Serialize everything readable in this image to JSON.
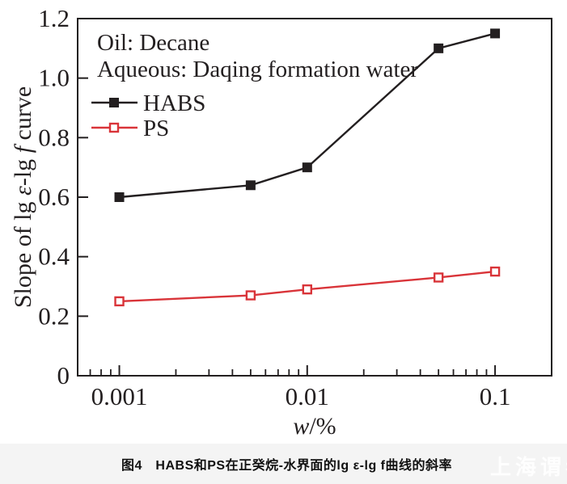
{
  "chart_data": {
    "type": "line",
    "title": "",
    "xlabel_parts": [
      {
        "t": "w",
        "i": true
      },
      {
        "t": "/%",
        "i": false
      }
    ],
    "ylabel_parts": [
      {
        "t": "Slope of lg ",
        "i": false
      },
      {
        "t": "ε",
        "i": true
      },
      {
        "t": "-lg ",
        "i": false
      },
      {
        "t": "f",
        "i": true
      },
      {
        "t": " curve",
        "i": false
      }
    ],
    "x_axis": {
      "scale": "log",
      "min": 0.0006,
      "max": 0.2,
      "major_ticks": [
        0.001,
        0.01,
        0.1
      ],
      "tick_labels": [
        "0.001",
        "0.01",
        "0.1"
      ]
    },
    "y_axis": {
      "scale": "linear",
      "min": 0,
      "max": 1.2,
      "major_ticks": [
        0,
        0.2,
        0.4,
        0.6,
        0.8,
        1.0,
        1.2
      ],
      "tick_labels": [
        "0",
        "0.2",
        "0.4",
        "0.6",
        "0.8",
        "1.0",
        "1.2"
      ]
    },
    "x": [
      0.001,
      0.005,
      0.01,
      0.05,
      0.1
    ],
    "series": [
      {
        "name": "HABS",
        "color": "#231f20",
        "marker": "filled-square",
        "values": [
          0.6,
          0.64,
          0.7,
          1.1,
          1.15
        ]
      },
      {
        "name": "PS",
        "color": "#d93439",
        "marker": "open-square",
        "values": [
          0.25,
          0.27,
          0.29,
          0.33,
          0.35
        ]
      }
    ],
    "annotations": [
      "Oil: Decane",
      "Aqueous: Daqing formation water"
    ],
    "legend_position": "top-left",
    "grid": false
  },
  "caption": {
    "text": "图4　HABS和PS在正癸烷-水界面的lg ε-lg f曲线的斜率"
  },
  "watermark": {
    "text": "上海谓者"
  },
  "colors": {
    "frame": "#231f20",
    "habs": "#231f20",
    "ps": "#d93439",
    "caption_bg": "#f4f4f4",
    "watermark_text": "#ffffff"
  }
}
